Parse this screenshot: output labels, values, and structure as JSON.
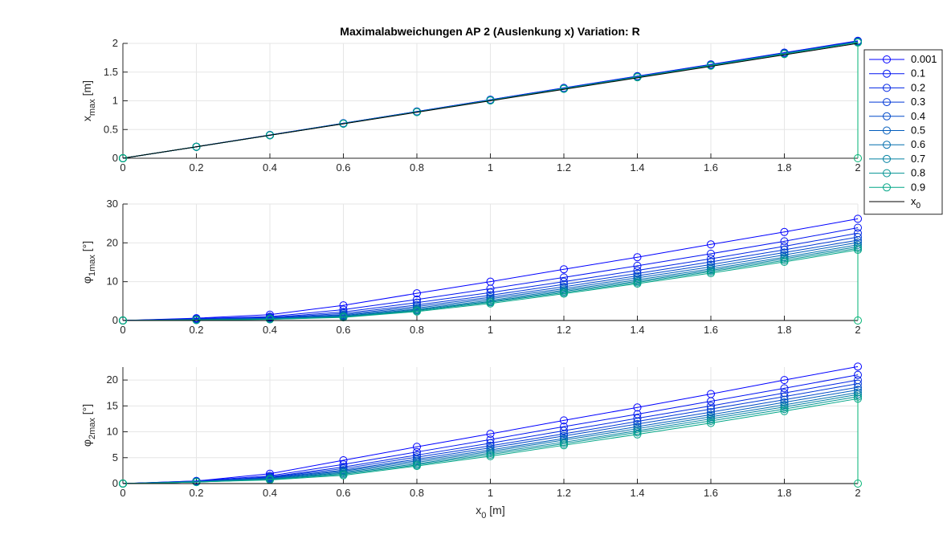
{
  "chart_data": [
    {
      "type": "line",
      "id": "x",
      "title": "Maximalabweichungen AP 2 (Auslenkung x)  Variation: R",
      "ylabel": {
        "main": "x",
        "sub": "max",
        "unit": " [m]"
      },
      "xlabel": "",
      "x": [
        0,
        0.2,
        0.4,
        0.6,
        0.8,
        1.0,
        1.2,
        1.4,
        1.6,
        1.8,
        2.0
      ],
      "xlim": [
        0,
        2
      ],
      "xticks": [
        "0",
        "0.2",
        "0.4",
        "0.6",
        "0.8",
        "1",
        "1.2",
        "1.4",
        "1.6",
        "1.8",
        "2"
      ],
      "ylim": [
        0,
        2
      ],
      "yticks": [
        "0",
        "0.5",
        "1",
        "1.5",
        "2"
      ],
      "grid": true,
      "series": [
        {
          "name": "0.001",
          "color": "#0000ff",
          "values": [
            0,
            0.2,
            0.405,
            0.61,
            0.815,
            1.02,
            1.225,
            1.43,
            1.635,
            1.84,
            2.045
          ]
        },
        {
          "name": "0.1",
          "color": "#0012f2",
          "values": [
            0,
            0.2,
            0.404,
            0.609,
            0.813,
            1.018,
            1.222,
            1.427,
            1.631,
            1.836,
            2.04
          ]
        },
        {
          "name": "0.2",
          "color": "#0025e4",
          "values": [
            0,
            0.2,
            0.403,
            0.608,
            0.812,
            1.016,
            1.22,
            1.424,
            1.628,
            1.832,
            2.036
          ]
        },
        {
          "name": "0.3",
          "color": "#0037d7",
          "values": [
            0,
            0.2,
            0.403,
            0.607,
            0.81,
            1.014,
            1.218,
            1.421,
            1.625,
            1.829,
            2.032
          ]
        },
        {
          "name": "0.4",
          "color": "#0049c9",
          "values": [
            0,
            0.2,
            0.402,
            0.606,
            0.809,
            1.012,
            1.216,
            1.419,
            1.622,
            1.826,
            2.029
          ]
        },
        {
          "name": "0.5",
          "color": "#005cbc",
          "values": [
            0,
            0.2,
            0.402,
            0.605,
            0.808,
            1.011,
            1.214,
            1.417,
            1.62,
            1.823,
            2.026
          ]
        },
        {
          "name": "0.6",
          "color": "#006eae",
          "values": [
            0,
            0.2,
            0.401,
            0.604,
            0.807,
            1.009,
            1.212,
            1.415,
            1.617,
            1.82,
            2.023
          ]
        },
        {
          "name": "0.7",
          "color": "#0080a1",
          "values": [
            0,
            0.2,
            0.401,
            0.604,
            0.806,
            1.008,
            1.21,
            1.413,
            1.615,
            1.817,
            2.02
          ]
        },
        {
          "name": "0.8",
          "color": "#009393",
          "values": [
            0,
            0.2,
            0.401,
            0.603,
            0.805,
            1.007,
            1.209,
            1.411,
            1.613,
            1.815,
            2.017
          ]
        },
        {
          "name": "0.9",
          "color": "#00a586",
          "values": [
            0,
            0.2,
            0.4,
            0.602,
            0.804,
            1.006,
            1.208,
            1.41,
            1.612,
            1.814,
            2.015
          ]
        },
        {
          "name": "x0",
          "color": "#000000",
          "marker": "none",
          "values": [
            0,
            0.2,
            0.4,
            0.6,
            0.8,
            1.0,
            1.2,
            1.4,
            1.6,
            1.8,
            2.0
          ]
        }
      ]
    },
    {
      "type": "line",
      "id": "phi1",
      "ylabel": {
        "main": "φ",
        "sub": "1max",
        "unit": " [°]"
      },
      "xlabel": "",
      "x": [
        0,
        0.2,
        0.4,
        0.6,
        0.8,
        1.0,
        1.2,
        1.4,
        1.6,
        1.8,
        2.0
      ],
      "xlim": [
        0,
        2
      ],
      "xticks": [
        "0",
        "0.2",
        "0.4",
        "0.6",
        "0.8",
        "1",
        "1.2",
        "1.4",
        "1.6",
        "1.8",
        "2"
      ],
      "ylim": [
        0,
        30
      ],
      "yticks": [
        "0",
        "10",
        "20",
        "30"
      ],
      "grid": true,
      "series": [
        {
          "name": "0.001",
          "color": "#0000ff",
          "values": [
            0,
            0.6,
            1.5,
            3.9,
            7.0,
            10.0,
            13.2,
            16.3,
            19.6,
            22.8,
            26.2
          ]
        },
        {
          "name": "0.1",
          "color": "#0012f2",
          "values": [
            0,
            0.5,
            1.0,
            2.8,
            5.4,
            8.2,
            11.1,
            14.1,
            17.2,
            20.4,
            23.9
          ]
        },
        {
          "name": "0.2",
          "color": "#0025e4",
          "values": [
            0,
            0.4,
            0.8,
            2.2,
            4.6,
            7.2,
            10.0,
            12.9,
            15.9,
            19.1,
            22.5
          ]
        },
        {
          "name": "0.3",
          "color": "#0037d7",
          "values": [
            0,
            0.3,
            0.7,
            1.8,
            4.0,
            6.5,
            9.3,
            12.1,
            15.1,
            18.2,
            21.5
          ]
        },
        {
          "name": "0.4",
          "color": "#0049c9",
          "values": [
            0,
            0.3,
            0.6,
            1.5,
            3.6,
            6.0,
            8.7,
            11.5,
            14.4,
            17.5,
            20.7
          ]
        },
        {
          "name": "0.5",
          "color": "#005cbc",
          "values": [
            0,
            0.2,
            0.5,
            1.3,
            3.2,
            5.6,
            8.2,
            11.0,
            13.8,
            16.9,
            20.1
          ]
        },
        {
          "name": "0.6",
          "color": "#006eae",
          "values": [
            0,
            0.2,
            0.4,
            1.1,
            2.9,
            5.2,
            7.8,
            10.5,
            13.3,
            16.3,
            19.5
          ]
        },
        {
          "name": "0.7",
          "color": "#0080a1",
          "values": [
            0,
            0.2,
            0.4,
            1.0,
            2.7,
            4.9,
            7.5,
            10.1,
            12.9,
            15.9,
            19.0
          ]
        },
        {
          "name": "0.8",
          "color": "#009393",
          "values": [
            0,
            0.1,
            0.3,
            0.9,
            2.5,
            4.7,
            7.2,
            9.8,
            12.6,
            15.5,
            18.6
          ]
        },
        {
          "name": "0.9",
          "color": "#00a586",
          "values": [
            0,
            0.1,
            0.3,
            0.8,
            2.3,
            4.4,
            6.9,
            9.5,
            12.2,
            15.1,
            18.2
          ]
        },
        {
          "name": "x0",
          "color": "#000000",
          "marker": "none",
          "values": [
            0,
            0,
            0,
            0,
            0,
            0,
            0,
            0,
            0,
            0,
            0
          ]
        }
      ]
    },
    {
      "type": "line",
      "id": "phi2",
      "ylabel": {
        "main": "φ",
        "sub": "2max",
        "unit": " [°]"
      },
      "xlabel": {
        "main": "x",
        "sub": "0",
        "unit": " [m]"
      },
      "x": [
        0,
        0.2,
        0.4,
        0.6,
        0.8,
        1.0,
        1.2,
        1.4,
        1.6,
        1.8,
        2.0
      ],
      "xlim": [
        0,
        2
      ],
      "xticks": [
        "0",
        "0.2",
        "0.4",
        "0.6",
        "0.8",
        "1",
        "1.2",
        "1.4",
        "1.6",
        "1.8",
        "2"
      ],
      "ylim": [
        0,
        22.5
      ],
      "yticks": [
        "0",
        "5",
        "10",
        "15",
        "20"
      ],
      "ytick_values": [
        0,
        5,
        10,
        15,
        20
      ],
      "grid": true,
      "series": [
        {
          "name": "0.001",
          "color": "#0000ff",
          "values": [
            0,
            0.5,
            1.9,
            4.5,
            7.1,
            9.6,
            12.2,
            14.7,
            17.3,
            20.0,
            22.6
          ]
        },
        {
          "name": "0.1",
          "color": "#0012f2",
          "values": [
            0,
            0.5,
            1.5,
            3.7,
            6.1,
            8.5,
            11.0,
            13.4,
            15.9,
            18.4,
            21.0
          ]
        },
        {
          "name": "0.2",
          "color": "#0025e4",
          "values": [
            0,
            0.4,
            1.3,
            3.2,
            5.5,
            7.8,
            10.2,
            12.6,
            15.0,
            17.5,
            20.0
          ]
        },
        {
          "name": "0.3",
          "color": "#0037d7",
          "values": [
            0,
            0.4,
            1.2,
            2.9,
            5.1,
            7.3,
            9.6,
            12.0,
            14.4,
            16.8,
            19.3
          ]
        },
        {
          "name": "0.4",
          "color": "#0049c9",
          "values": [
            0,
            0.4,
            1.1,
            2.6,
            4.7,
            6.9,
            9.2,
            11.5,
            13.8,
            16.2,
            18.6
          ]
        },
        {
          "name": "0.5",
          "color": "#005cbc",
          "values": [
            0,
            0.4,
            1.0,
            2.4,
            4.4,
            6.5,
            8.7,
            11.0,
            13.3,
            15.7,
            18.1
          ]
        },
        {
          "name": "0.6",
          "color": "#006eae",
          "values": [
            0,
            0.3,
            0.9,
            2.2,
            4.1,
            6.2,
            8.4,
            10.6,
            12.9,
            15.2,
            17.6
          ]
        },
        {
          "name": "0.7",
          "color": "#0080a1",
          "values": [
            0,
            0.3,
            0.8,
            2.0,
            3.8,
            5.9,
            8.0,
            10.2,
            12.5,
            14.8,
            17.2
          ]
        },
        {
          "name": "0.8",
          "color": "#009393",
          "values": [
            0,
            0.3,
            0.8,
            1.8,
            3.6,
            5.6,
            7.7,
            9.9,
            12.1,
            14.4,
            16.8
          ]
        },
        {
          "name": "0.9",
          "color": "#00a586",
          "values": [
            0,
            0.3,
            0.7,
            1.6,
            3.4,
            5.3,
            7.4,
            9.5,
            11.7,
            14.0,
            16.4
          ]
        },
        {
          "name": "x0",
          "color": "#000000",
          "marker": "none",
          "values": [
            0,
            0,
            0,
            0,
            0,
            0,
            0,
            0,
            0,
            0,
            0
          ]
        }
      ]
    }
  ],
  "legend": {
    "placement": "outside-right-top",
    "entries": [
      {
        "label": "0.001",
        "color": "#0000ff",
        "marker": true
      },
      {
        "label": "0.1",
        "color": "#0012f2",
        "marker": true
      },
      {
        "label": "0.2",
        "color": "#0025e4",
        "marker": true
      },
      {
        "label": "0.3",
        "color": "#0037d7",
        "marker": true
      },
      {
        "label": "0.4",
        "color": "#0049c9",
        "marker": true
      },
      {
        "label": "0.5",
        "color": "#005cbc",
        "marker": true
      },
      {
        "label": "0.6",
        "color": "#006eae",
        "marker": true
      },
      {
        "label": "0.7",
        "color": "#0080a1",
        "marker": true
      },
      {
        "label": "0.8",
        "color": "#009393",
        "marker": true
      },
      {
        "label": "0.9",
        "color": "#00a586",
        "marker": true
      },
      {
        "label": "x",
        "label_sub": "0",
        "color": "#000000",
        "marker": false
      }
    ]
  },
  "colors": {
    "grid": "#e6e6e6",
    "axis": "#262626",
    "series_end": "#00b374"
  }
}
